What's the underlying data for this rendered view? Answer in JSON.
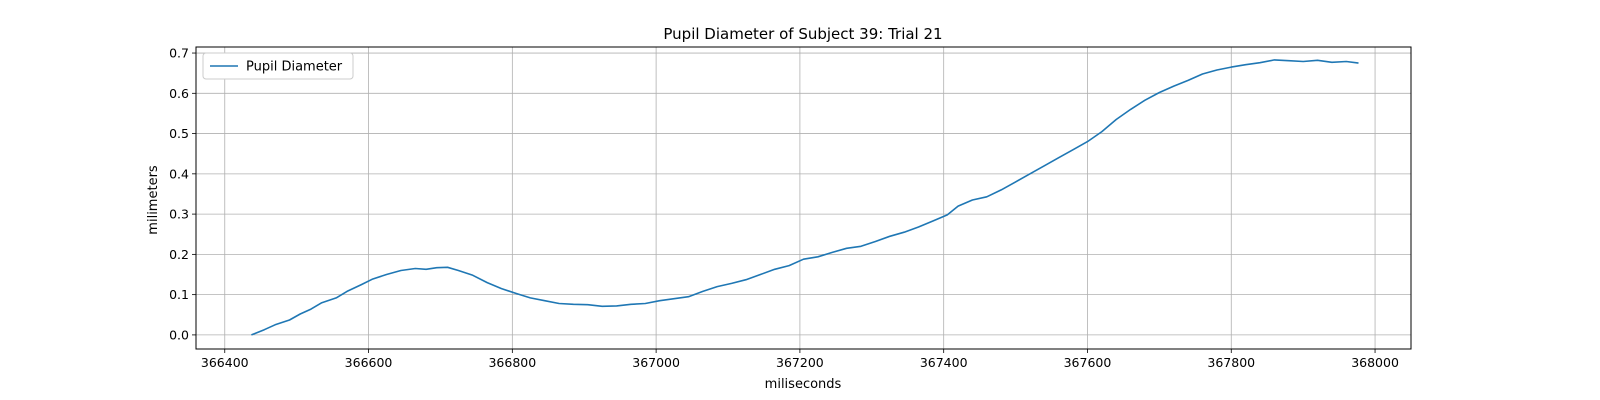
{
  "chart_data": {
    "type": "line",
    "title": "Pupil Diameter of Subject 39: Trial 21",
    "xlabel": "miliseconds",
    "ylabel": "milimeters",
    "xlim": [
      366360,
      368050
    ],
    "ylim": [
      -0.035,
      0.715
    ],
    "x_ticks": [
      366400,
      366600,
      366800,
      367000,
      367200,
      367400,
      367600,
      367800,
      368000
    ],
    "y_ticks": [
      0.0,
      0.1,
      0.2,
      0.3,
      0.4,
      0.5,
      0.6,
      0.7
    ],
    "x_tick_labels": [
      "366400",
      "366600",
      "366800",
      "367000",
      "367200",
      "367400",
      "367600",
      "367800",
      "368000"
    ],
    "y_tick_labels": [
      "0.0",
      "0.1",
      "0.2",
      "0.3",
      "0.4",
      "0.5",
      "0.6",
      "0.7"
    ],
    "grid": true,
    "legend_position": "top-left",
    "series": [
      {
        "name": "Pupil Diameter",
        "color": "#1f77b4",
        "x": [
          366437,
          366455,
          366470,
          366490,
          366505,
          366520,
          366535,
          366555,
          366570,
          366590,
          366605,
          366625,
          366645,
          366665,
          366680,
          366695,
          366710,
          366725,
          366745,
          366765,
          366785,
          366805,
          366825,
          366845,
          366865,
          366885,
          366905,
          366925,
          366945,
          366965,
          366985,
          367005,
          367025,
          367045,
          367065,
          367085,
          367105,
          367125,
          367145,
          367165,
          367185,
          367205,
          367225,
          367245,
          367265,
          367285,
          367305,
          367325,
          367345,
          367365,
          367385,
          367405,
          367420,
          367440,
          367460,
          367480,
          367500,
          367520,
          367540,
          367560,
          367580,
          367600,
          367620,
          367640,
          367660,
          367680,
          367700,
          367720,
          367740,
          367760,
          367780,
          367800,
          367820,
          367840,
          367860,
          367880,
          367900,
          367920,
          367940,
          367960,
          367977
        ],
        "y": [
          0.0,
          0.013,
          0.025,
          0.037,
          0.052,
          0.064,
          0.08,
          0.092,
          0.108,
          0.125,
          0.138,
          0.15,
          0.16,
          0.165,
          0.163,
          0.167,
          0.168,
          0.16,
          0.148,
          0.13,
          0.115,
          0.103,
          0.092,
          0.085,
          0.078,
          0.076,
          0.075,
          0.071,
          0.072,
          0.076,
          0.078,
          0.085,
          0.09,
          0.095,
          0.108,
          0.12,
          0.128,
          0.137,
          0.15,
          0.163,
          0.172,
          0.188,
          0.194,
          0.205,
          0.215,
          0.22,
          0.232,
          0.245,
          0.255,
          0.268,
          0.283,
          0.298,
          0.32,
          0.335,
          0.343,
          0.36,
          0.38,
          0.4,
          0.42,
          0.44,
          0.46,
          0.48,
          0.505,
          0.535,
          0.56,
          0.583,
          0.602,
          0.618,
          0.632,
          0.648,
          0.658,
          0.665,
          0.671,
          0.676,
          0.683,
          0.681,
          0.679,
          0.682,
          0.677,
          0.679,
          0.675
        ]
      }
    ]
  }
}
